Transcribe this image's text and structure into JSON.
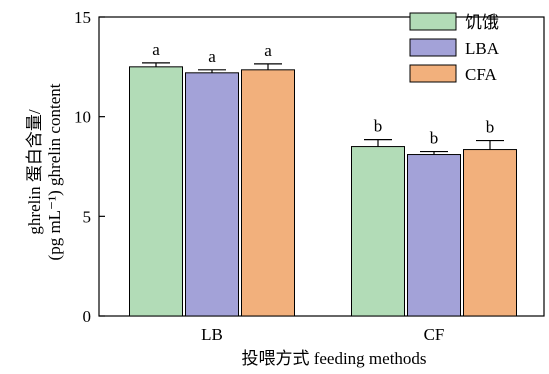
{
  "chart_data": {
    "type": "bar",
    "categories": [
      "LB",
      "CF"
    ],
    "series": [
      {
        "name": "饥饿",
        "color": "#b2dcb7",
        "values": [
          12.5,
          8.5
        ],
        "errors": [
          0.2,
          0.35
        ],
        "sig_labels": [
          "a",
          "b"
        ]
      },
      {
        "name": "LBA",
        "color": "#a3a2d8",
        "values": [
          12.2,
          8.1
        ],
        "errors": [
          0.15,
          0.15
        ],
        "sig_labels": [
          "a",
          "b"
        ]
      },
      {
        "name": "CFA",
        "color": "#f2b07c",
        "values": [
          12.35,
          8.35
        ],
        "errors": [
          0.3,
          0.45
        ],
        "sig_labels": [
          "a",
          "b"
        ]
      }
    ],
    "title": "",
    "xlabel": "投喂方式 feeding methods",
    "ylabel_line1": "ghrelin 蛋白含量/",
    "ylabel_line2": "(pg mL⁻¹) ghrelin content",
    "ylim": [
      0,
      15
    ],
    "yticks": [
      "0",
      "5",
      "10",
      "15"
    ],
    "grid": false,
    "legend_position": "top-right"
  }
}
